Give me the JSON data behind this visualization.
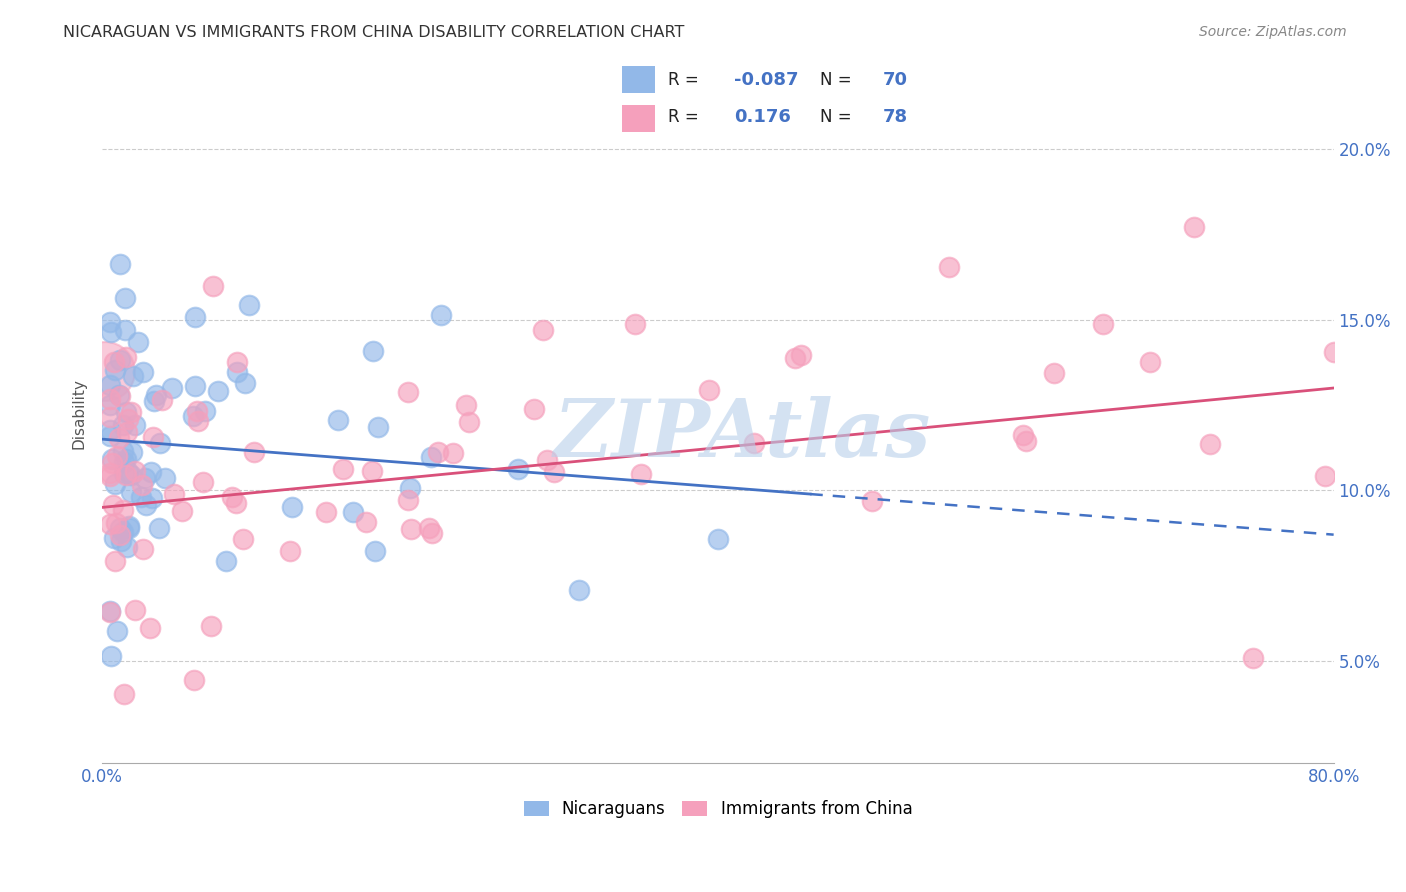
{
  "title": "NICARAGUAN VS IMMIGRANTS FROM CHINA DISABILITY CORRELATION CHART",
  "source": "Source: ZipAtlas.com",
  "ylabel": "Disability",
  "ytick_labels": [
    "5.0%",
    "10.0%",
    "15.0%",
    "20.0%"
  ],
  "ytick_values": [
    0.05,
    0.1,
    0.15,
    0.2
  ],
  "xlim": [
    0.0,
    0.8
  ],
  "ylim": [
    0.02,
    0.225
  ],
  "legend_labels": [
    "Nicaraguans",
    "Immigrants from China"
  ],
  "blue_R": -0.087,
  "blue_N": 70,
  "pink_R": 0.176,
  "pink_N": 78,
  "blue_color": "#92b8e8",
  "pink_color": "#f5a0bc",
  "blue_line_color": "#4472c4",
  "pink_line_color": "#d9507a",
  "blue_line_start_y": 0.115,
  "blue_line_end_solid_x": 0.46,
  "blue_line_end_solid_y": 0.101,
  "blue_line_end_x": 0.8,
  "blue_line_end_y": 0.087,
  "pink_line_start_y": 0.095,
  "pink_line_end_y": 0.13,
  "watermark_color": "#b8d0ea",
  "background_color": "#ffffff"
}
